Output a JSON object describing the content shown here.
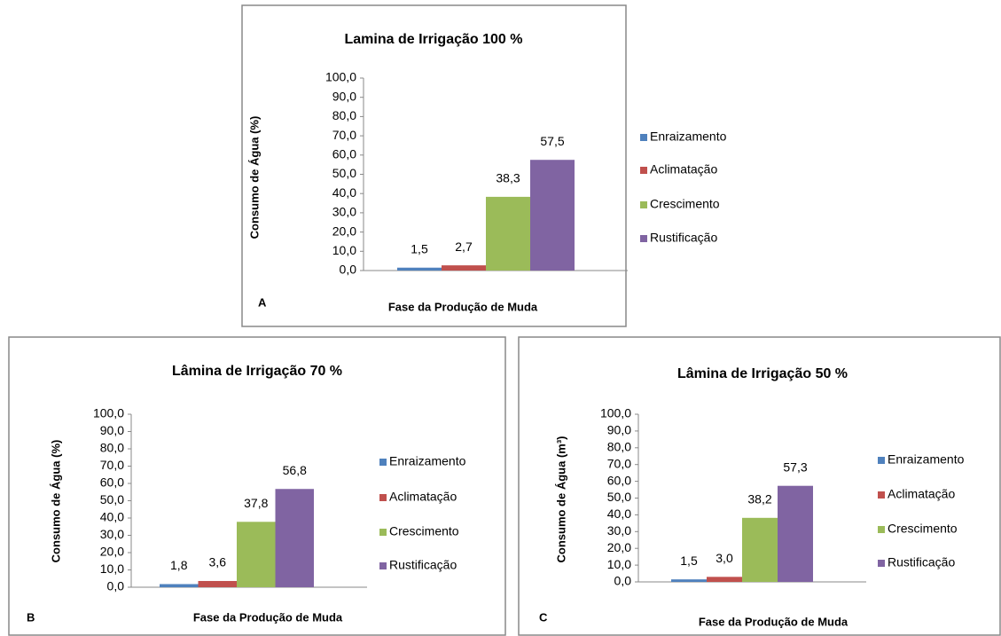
{
  "chart_data": [
    {
      "type": "bar",
      "title": "Lamina de Irrigação 100 %",
      "panel_label": "A",
      "ylabel": "Consumo de Água (%)",
      "xlabel": "Fase da Produção de Muda",
      "categories": [
        null
      ],
      "series": [
        {
          "name": "Enraizamento",
          "color": "#4f81bd",
          "values": [
            1.5
          ],
          "value_labels": [
            "1,5"
          ]
        },
        {
          "name": "Aclimatação",
          "color": "#c0504d",
          "values": [
            2.7
          ],
          "value_labels": [
            "2,7"
          ]
        },
        {
          "name": "Crescimento",
          "color": "#9bbb59",
          "values": [
            38.3
          ],
          "value_labels": [
            "38,3"
          ]
        },
        {
          "name": "Rustificação",
          "color": "#8064a2",
          "values": [
            57.5
          ],
          "value_labels": [
            "57,5"
          ]
        }
      ],
      "ylim": [
        0,
        100
      ],
      "yticks": [
        {
          "value": 0,
          "label": "0,0"
        },
        {
          "value": 10,
          "label": "10,0"
        },
        {
          "value": 20,
          "label": "20,0"
        },
        {
          "value": 30,
          "label": "30,0"
        },
        {
          "value": 40,
          "label": "40,0"
        },
        {
          "value": 50,
          "label": "50,0"
        },
        {
          "value": 60,
          "label": "60,0"
        },
        {
          "value": 70,
          "label": "70,0"
        },
        {
          "value": 80,
          "label": "80,0"
        },
        {
          "value": 90,
          "label": "90,0"
        },
        {
          "value": 100,
          "label": "100,0"
        }
      ],
      "legend": "right"
    },
    {
      "type": "bar",
      "title": "Lâmina de Irrigação 70 %",
      "panel_label": "B",
      "ylabel": "Consumo de Água (%)",
      "xlabel": "Fase da Produção de Muda",
      "categories": [
        null
      ],
      "series": [
        {
          "name": "Enraizamento",
          "color": "#4f81bd",
          "values": [
            1.8
          ],
          "value_labels": [
            "1,8"
          ]
        },
        {
          "name": "Aclimatação",
          "color": "#c0504d",
          "values": [
            3.6
          ],
          "value_labels": [
            "3,6"
          ]
        },
        {
          "name": "Crescimento",
          "color": "#9bbb59",
          "values": [
            37.8
          ],
          "value_labels": [
            "37,8"
          ]
        },
        {
          "name": "Rustificação",
          "color": "#8064a2",
          "values": [
            56.8
          ],
          "value_labels": [
            "56,8"
          ]
        }
      ],
      "ylim": [
        0,
        100
      ],
      "yticks": [
        {
          "value": 0,
          "label": "0,0"
        },
        {
          "value": 10,
          "label": "10,0"
        },
        {
          "value": 20,
          "label": "20,0"
        },
        {
          "value": 30,
          "label": "30,0"
        },
        {
          "value": 40,
          "label": "40,0"
        },
        {
          "value": 50,
          "label": "50,0"
        },
        {
          "value": 60,
          "label": "60,0"
        },
        {
          "value": 70,
          "label": "70,0"
        },
        {
          "value": 80,
          "label": "80,0"
        },
        {
          "value": 90,
          "label": "90,0"
        },
        {
          "value": 100,
          "label": "100,0"
        }
      ],
      "legend": "right"
    },
    {
      "type": "bar",
      "title": "Lâmina de Irrigação 50 %",
      "panel_label": "C",
      "ylabel": "Consumo de Água (m³)",
      "xlabel": "Fase da Produção de Muda",
      "categories": [
        null
      ],
      "series": [
        {
          "name": "Enraizamento",
          "color": "#4f81bd",
          "values": [
            1.5
          ],
          "value_labels": [
            "1,5"
          ]
        },
        {
          "name": "Aclimatação",
          "color": "#c0504d",
          "values": [
            3.0
          ],
          "value_labels": [
            "3,0"
          ]
        },
        {
          "name": "Crescimento",
          "color": "#9bbb59",
          "values": [
            38.2
          ],
          "value_labels": [
            "38,2"
          ]
        },
        {
          "name": "Rustificação",
          "color": "#8064a2",
          "values": [
            57.3
          ],
          "value_labels": [
            "57,3"
          ]
        }
      ],
      "ylim": [
        0,
        100
      ],
      "yticks": [
        {
          "value": 0,
          "label": "0,0"
        },
        {
          "value": 10,
          "label": "10,0"
        },
        {
          "value": 20,
          "label": "20,0"
        },
        {
          "value": 30,
          "label": "30,0"
        },
        {
          "value": 40,
          "label": "40,0"
        },
        {
          "value": 50,
          "label": "50,0"
        },
        {
          "value": 60,
          "label": "60,0"
        },
        {
          "value": 70,
          "label": "70,0"
        },
        {
          "value": 80,
          "label": "80,0"
        },
        {
          "value": 90,
          "label": "90,0"
        },
        {
          "value": 100,
          "label": "100,0"
        }
      ],
      "legend": "right"
    }
  ]
}
